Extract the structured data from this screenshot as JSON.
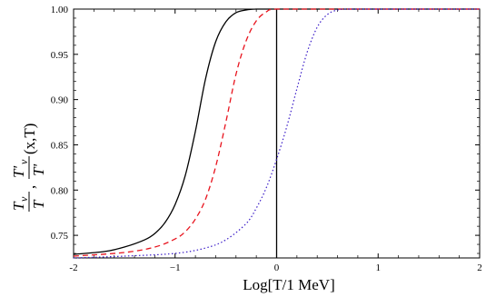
{
  "chart_data": {
    "type": "line",
    "title": "",
    "xlabel": "Log[T/1 MeV]",
    "ylabel": {
      "frac1_num": "T",
      "frac1_num_sub": "ν",
      "frac1_den": "T",
      "separator": ",",
      "frac2_num": "T'",
      "frac2_num_sub": "ν",
      "frac2_den": "T'",
      "suffix": "(x,T)"
    },
    "xlim": [
      -2,
      2
    ],
    "ylim": [
      0.725,
      1.0
    ],
    "x_ticks": [
      -2,
      -1,
      0,
      1,
      2
    ],
    "x_tick_labels": [
      "-2",
      "−1",
      "0",
      "1",
      "2"
    ],
    "y_ticks": [
      0.75,
      0.8,
      0.85,
      0.9,
      0.95,
      1.0
    ],
    "y_tick_labels": [
      "0.75",
      "0.80",
      "0.85",
      "0.90",
      "0.95",
      "1.00"
    ],
    "vertical_line_x": 0,
    "grid": false,
    "legend": "none",
    "series": [
      {
        "style": "solid",
        "color": "#000000",
        "x": [
          -2.0,
          -1.7,
          -1.5,
          -1.3,
          -1.2,
          -1.1,
          -1.0,
          -0.9,
          -0.8,
          -0.7,
          -0.6,
          -0.5,
          -0.4,
          -0.3,
          -0.2,
          -0.1,
          0.0,
          1.0,
          2.0
        ],
        "y": [
          0.729,
          0.732,
          0.737,
          0.745,
          0.752,
          0.764,
          0.784,
          0.816,
          0.865,
          0.923,
          0.964,
          0.986,
          0.996,
          0.999,
          1.0,
          1.0,
          1.0,
          1.0,
          1.0
        ]
      },
      {
        "style": "dashed",
        "color": "#e8141e",
        "x": [
          -2.0,
          -1.5,
          -1.2,
          -1.0,
          -0.9,
          -0.8,
          -0.7,
          -0.6,
          -0.5,
          -0.4,
          -0.3,
          -0.2,
          -0.1,
          0.0,
          0.5,
          1.0,
          2.0
        ],
        "y": [
          0.727,
          0.731,
          0.737,
          0.746,
          0.754,
          0.768,
          0.79,
          0.826,
          0.875,
          0.928,
          0.965,
          0.987,
          0.997,
          1.0,
          1.0,
          1.0,
          1.0
        ]
      },
      {
        "style": "dotted",
        "color": "#3a1cc8",
        "x": [
          -2.0,
          -1.5,
          -1.0,
          -0.7,
          -0.5,
          -0.3,
          -0.2,
          -0.1,
          0.0,
          0.1,
          0.2,
          0.3,
          0.4,
          0.5,
          0.6,
          0.7,
          1.0,
          2.0
        ],
        "y": [
          0.725,
          0.727,
          0.73,
          0.736,
          0.745,
          0.763,
          0.78,
          0.803,
          0.834,
          0.87,
          0.912,
          0.952,
          0.98,
          0.994,
          0.999,
          1.0,
          1.0,
          1.0
        ]
      }
    ]
  }
}
